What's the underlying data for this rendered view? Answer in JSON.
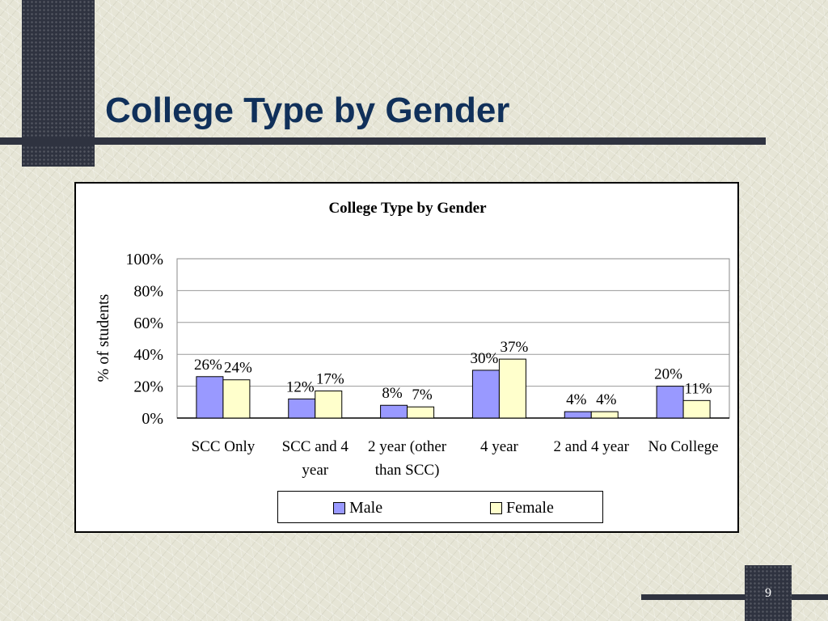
{
  "slide": {
    "title": "College Type by Gender",
    "page_number": "9"
  },
  "colors": {
    "male": "#9999ff",
    "female": "#ffffcc",
    "title": "#10305a",
    "decor": "#2f3340"
  },
  "chart_data": {
    "type": "bar",
    "title": "College Type by Gender",
    "xlabel": "",
    "ylabel": "% of students",
    "ylim": [
      0,
      100
    ],
    "yticks": [
      "0%",
      "20%",
      "40%",
      "60%",
      "80%",
      "100%"
    ],
    "grid": true,
    "legend_position": "bottom",
    "categories": [
      [
        "SCC Only"
      ],
      [
        "SCC and 4",
        "year"
      ],
      [
        "2 year (other",
        "than SCC)"
      ],
      [
        "4 year"
      ],
      [
        "2 and  4 year"
      ],
      [
        "No College"
      ]
    ],
    "series": [
      {
        "name": "Male",
        "values": [
          26,
          12,
          8,
          30,
          4,
          20
        ],
        "labels": [
          "26%",
          "12%",
          "8%",
          "30%",
          "4%",
          "20%"
        ]
      },
      {
        "name": "Female",
        "values": [
          24,
          17,
          7,
          37,
          4,
          11
        ],
        "labels": [
          "24%",
          "17%",
          "7%",
          "37%",
          "4%",
          "11%"
        ]
      }
    ]
  }
}
